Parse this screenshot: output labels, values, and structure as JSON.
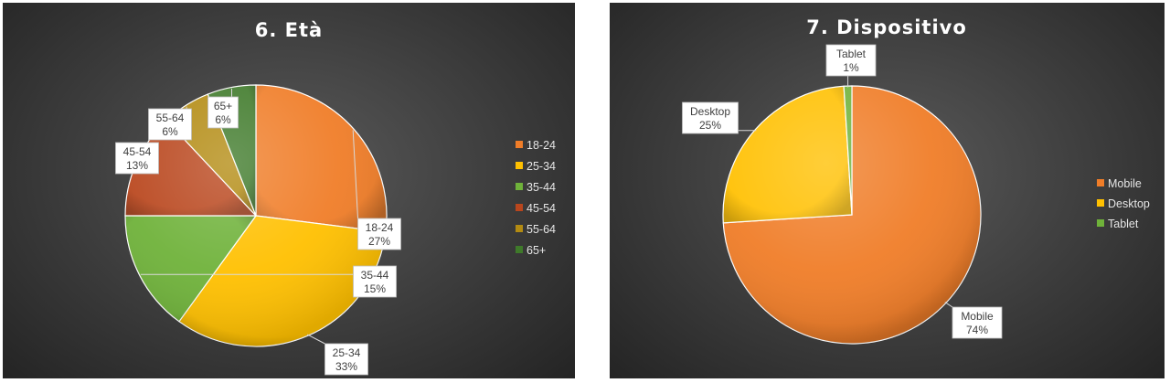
{
  "chart_data": [
    {
      "type": "pie",
      "title": "6. Età",
      "categories": [
        "18-24",
        "25-34",
        "35-44",
        "45-54",
        "55-64",
        "65+"
      ],
      "values": [
        27,
        33,
        15,
        13,
        6,
        6
      ],
      "value_labels": [
        "27%",
        "33%",
        "15%",
        "13%",
        "6%",
        "6%"
      ],
      "colors": [
        "#f07d28",
        "#ffc000",
        "#6fb23a",
        "#b9461d",
        "#b38b12",
        "#3f7a2a"
      ],
      "legend": "right"
    },
    {
      "type": "pie",
      "title": "7. Dispositivo",
      "categories": [
        "Mobile",
        "Desktop",
        "Tablet"
      ],
      "values": [
        74,
        25,
        1
      ],
      "value_labels": [
        "74%",
        "25%",
        "1%"
      ],
      "colors": [
        "#f07d28",
        "#ffc000",
        "#6fb23a"
      ],
      "legend": "right"
    }
  ]
}
